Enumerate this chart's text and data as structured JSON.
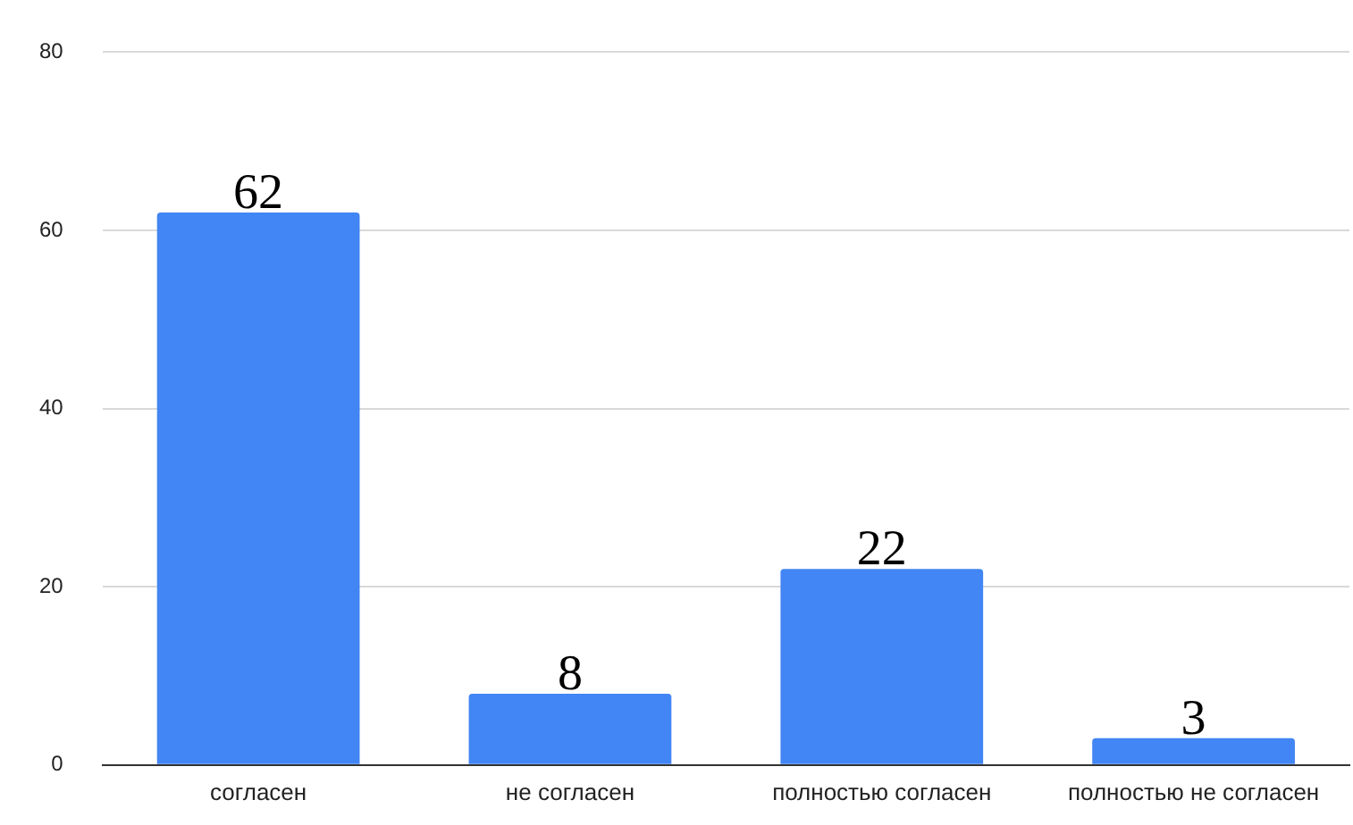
{
  "chart_data": {
    "type": "bar",
    "categories": [
      "согласен",
      "не согласен",
      "полностью согласен",
      "полностью не согласен"
    ],
    "values": [
      62,
      8,
      22,
      3
    ],
    "color": "#4285f4",
    "ylim": [
      0,
      80
    ],
    "yticks": [
      0,
      20,
      40,
      60,
      80
    ],
    "grid": "y",
    "data_labels": true
  }
}
